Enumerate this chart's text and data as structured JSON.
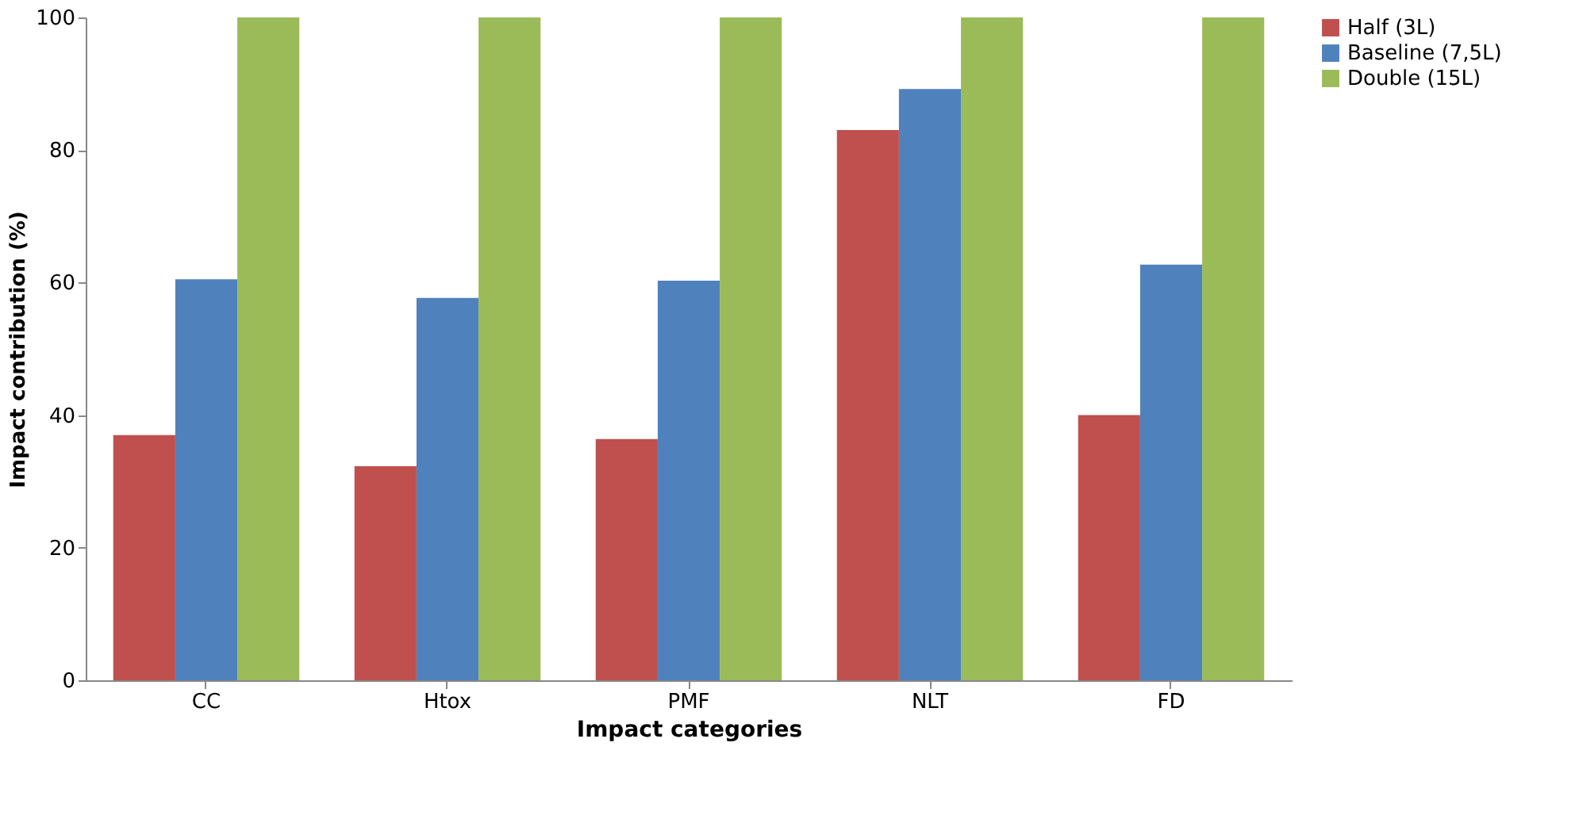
{
  "chart_data": {
    "type": "bar",
    "xlabel": "Impact categories",
    "ylabel": "Impact contribution (%)",
    "categories": [
      "CC",
      "Htox",
      "PMF",
      "NLT",
      "FD"
    ],
    "series": [
      {
        "name": "Half (3L)",
        "color": "#c0504d",
        "values": [
          37,
          32.3,
          36.4,
          83,
          40
        ]
      },
      {
        "name": "Baseline (7,5L)",
        "color": "#4f81bd",
        "values": [
          60.5,
          57.7,
          60.3,
          89.2,
          62.7
        ]
      },
      {
        "name": "Double (15L)",
        "color": "#9bbb59",
        "values": [
          100,
          100,
          100,
          100,
          100
        ]
      }
    ],
    "ylim": [
      0,
      100
    ],
    "yticks": [
      0,
      20,
      40,
      60,
      80,
      100
    ],
    "grid": false,
    "legend": "right"
  }
}
